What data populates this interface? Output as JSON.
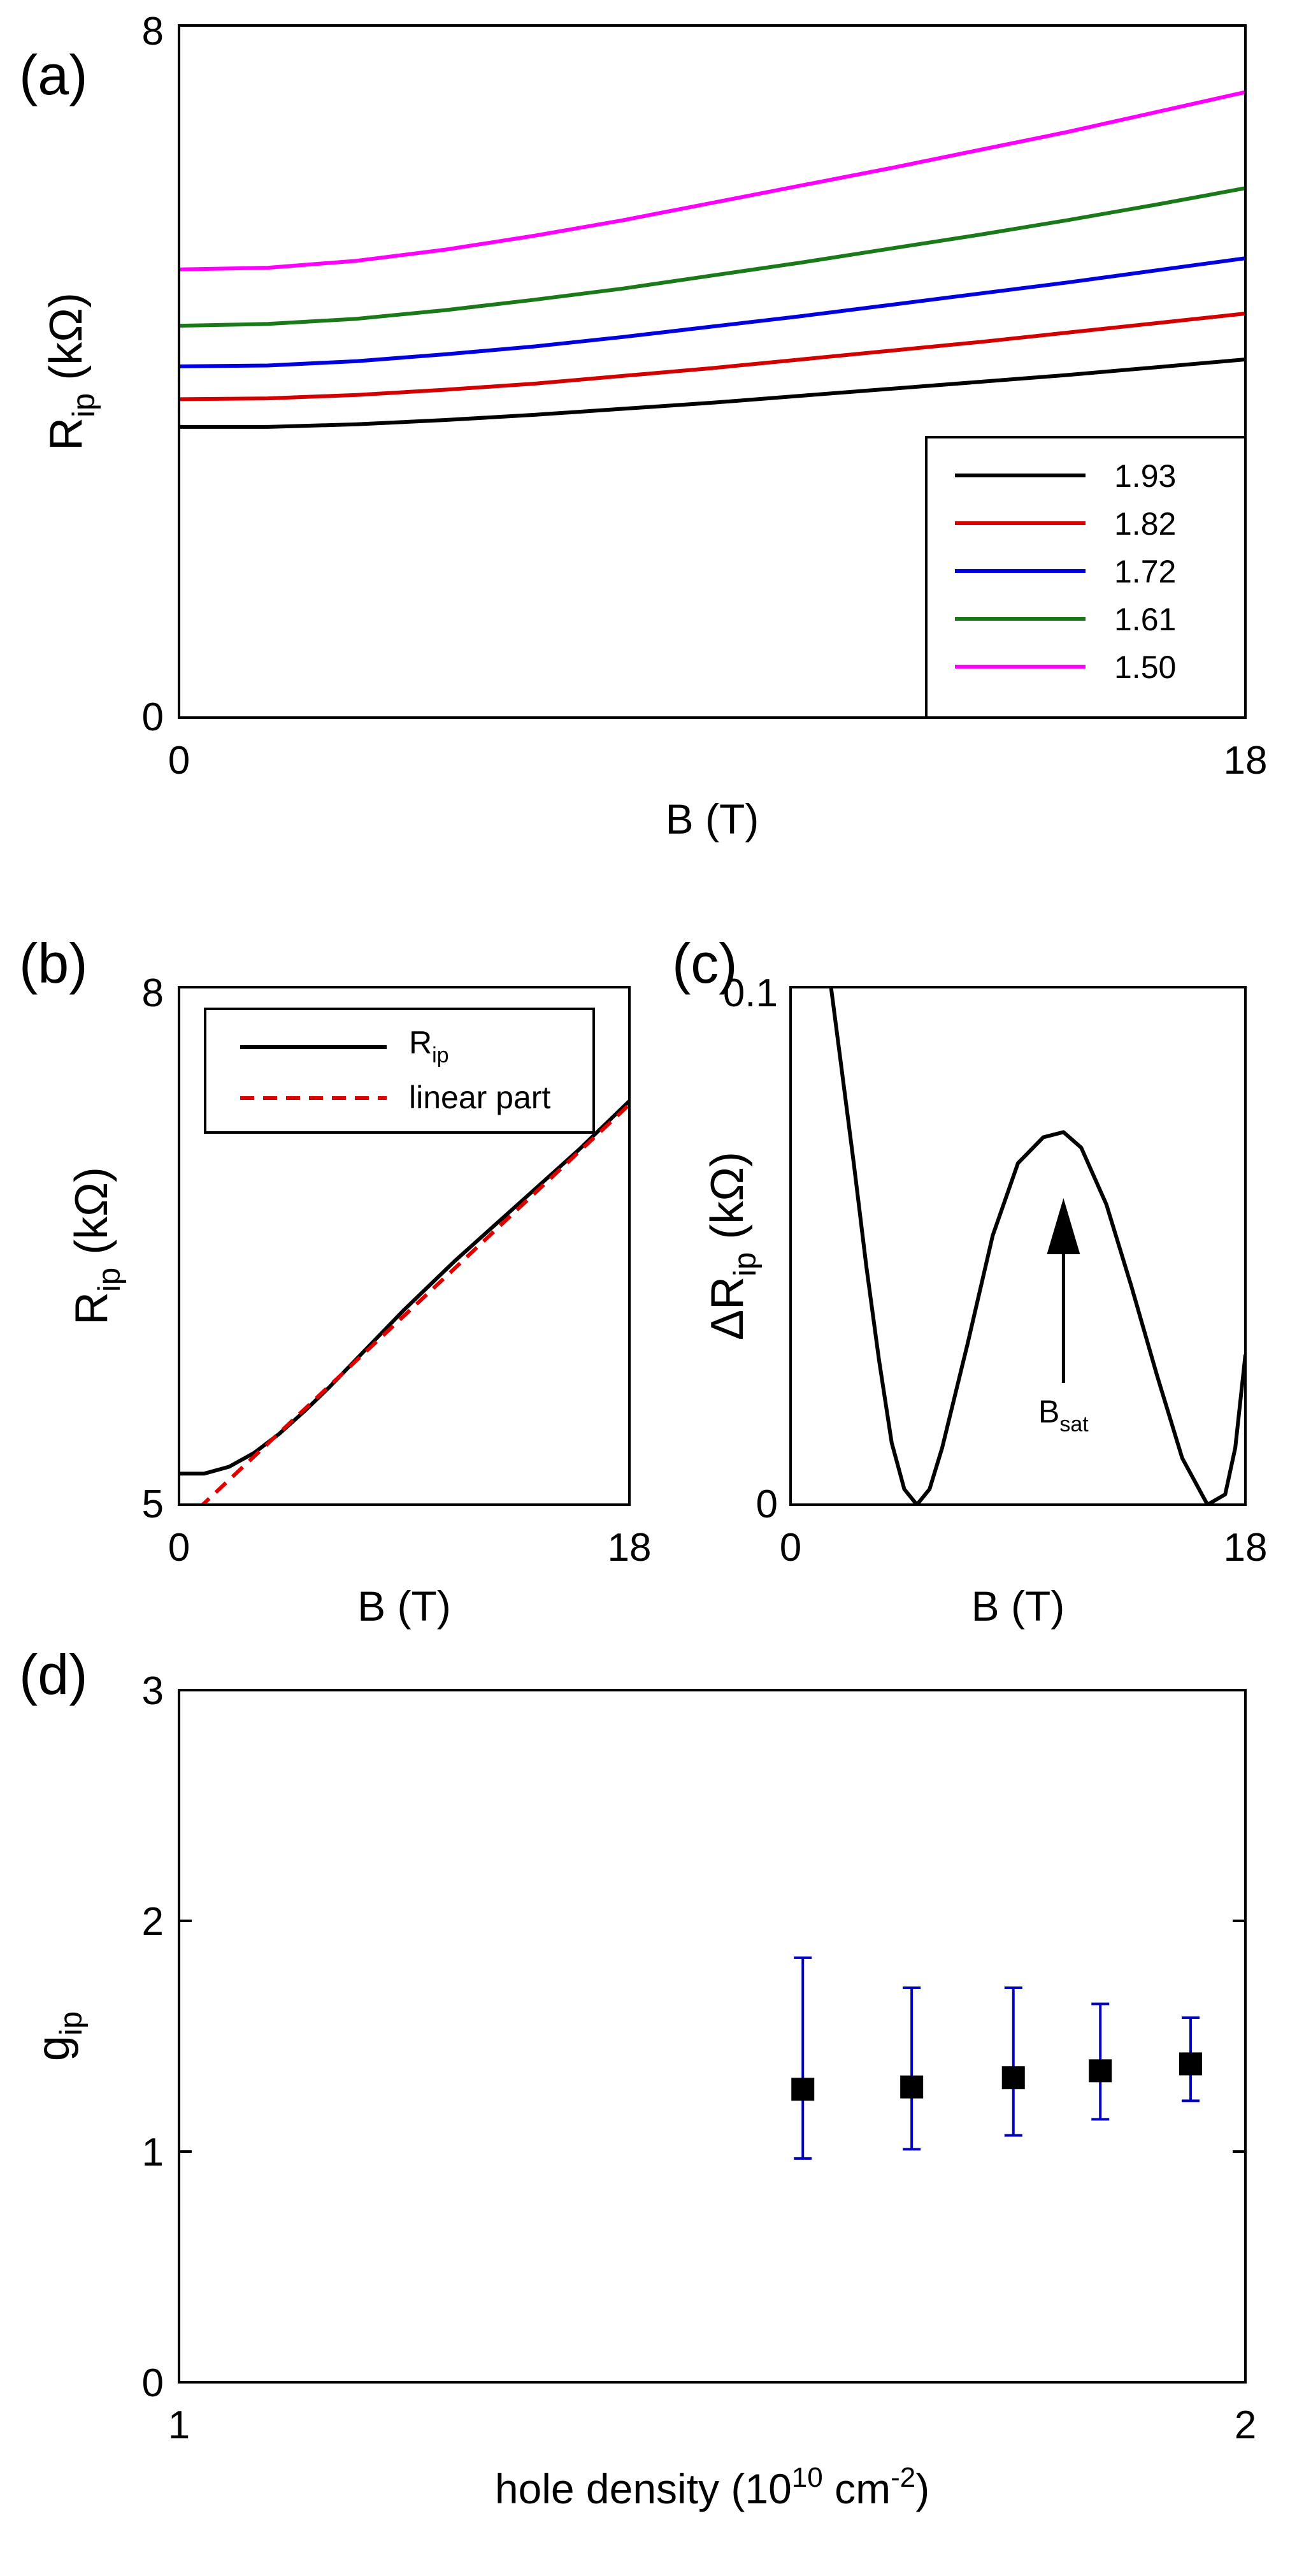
{
  "chart_data": [
    {
      "panel_label": "(a)",
      "type": "line",
      "xlabel": "B (T)",
      "ylabel": "R",
      "ylabel_sub": "ip",
      "ylabel_unit": "(kΩ)",
      "xlim": [
        0,
        18
      ],
      "ylim": [
        0,
        8
      ],
      "xticks": [
        "0",
        "18"
      ],
      "yticks": [
        "0",
        "8"
      ],
      "legend_position": "bottom-right",
      "series": [
        {
          "name": "1.93",
          "color": "#000000",
          "x": [
            0,
            1.5,
            3,
            4.5,
            6,
            7.5,
            9,
            10.5,
            12,
            13.5,
            15,
            16.5,
            18
          ],
          "y": [
            3.36,
            3.36,
            3.39,
            3.44,
            3.5,
            3.57,
            3.64,
            3.72,
            3.8,
            3.88,
            3.96,
            4.05,
            4.14
          ]
        },
        {
          "name": "1.82",
          "color": "#d40000",
          "x": [
            0,
            1.5,
            3,
            4.5,
            6,
            7.5,
            9,
            10.5,
            12,
            13.5,
            15,
            16.5,
            18
          ],
          "y": [
            3.68,
            3.69,
            3.73,
            3.79,
            3.86,
            3.95,
            4.04,
            4.14,
            4.24,
            4.34,
            4.45,
            4.56,
            4.67
          ]
        },
        {
          "name": "1.72",
          "color": "#0000e0",
          "x": [
            0,
            1.5,
            3,
            4.5,
            6,
            7.5,
            9,
            10.5,
            12,
            13.5,
            15,
            16.5,
            18
          ],
          "y": [
            4.06,
            4.07,
            4.12,
            4.2,
            4.29,
            4.4,
            4.52,
            4.64,
            4.77,
            4.9,
            5.03,
            5.17,
            5.31
          ]
        },
        {
          "name": "1.61",
          "color": "#1a7a1a",
          "x": [
            0,
            1.5,
            3,
            4.5,
            6,
            7.5,
            9,
            10.5,
            12,
            13.5,
            15,
            16.5,
            18
          ],
          "y": [
            4.53,
            4.55,
            4.61,
            4.71,
            4.83,
            4.96,
            5.11,
            5.26,
            5.42,
            5.58,
            5.75,
            5.93,
            6.12
          ]
        },
        {
          "name": "1.50",
          "color": "#ff00ff",
          "x": [
            0,
            1.5,
            3,
            4.5,
            6,
            7.5,
            9,
            10.5,
            12,
            13.5,
            15,
            16.5,
            18
          ],
          "y": [
            5.18,
            5.2,
            5.28,
            5.41,
            5.57,
            5.75,
            5.95,
            6.15,
            6.35,
            6.56,
            6.77,
            7.0,
            7.23
          ]
        }
      ]
    },
    {
      "panel_label": "(b)",
      "type": "line",
      "xlabel": "B (T)",
      "ylabel": "R",
      "ylabel_sub": "ip",
      "ylabel_unit": "(kΩ)",
      "xlim": [
        0,
        18
      ],
      "ylim": [
        5,
        8
      ],
      "xticks": [
        "0",
        "18"
      ],
      "yticks": [
        "5",
        "8"
      ],
      "legend_position": "top-left",
      "series": [
        {
          "name": "R",
          "name_sub": "ip",
          "color": "#000000",
          "dashed": false,
          "x": [
            0,
            1,
            2,
            3,
            4,
            5,
            6,
            7,
            8,
            9,
            10,
            11,
            12,
            13,
            14,
            15,
            16,
            17,
            18
          ],
          "y": [
            5.18,
            5.18,
            5.22,
            5.3,
            5.41,
            5.54,
            5.68,
            5.83,
            5.98,
            6.13,
            6.27,
            6.41,
            6.54,
            6.67,
            6.8,
            6.93,
            7.06,
            7.2,
            7.34
          ]
        },
        {
          "name": "linear part",
          "color": "#e00000",
          "dashed": true,
          "x": [
            0.8,
            18
          ],
          "y": [
            4.98,
            7.32
          ]
        }
      ]
    },
    {
      "panel_label": "(c)",
      "type": "line",
      "xlabel": "B (T)",
      "ylabel": "ΔR",
      "ylabel_sub": "ip",
      "ylabel_unit": "(kΩ)",
      "xlim": [
        0,
        18
      ],
      "ylim": [
        0,
        0.1
      ],
      "xticks": [
        "0",
        "18"
      ],
      "yticks": [
        "0",
        "0.1"
      ],
      "annotation": "B",
      "annotation_sub": "sat",
      "annotation_x": 10.8,
      "series": [
        {
          "color": "#000000",
          "x": [
            1.6,
            2.0,
            2.5,
            3.0,
            3.5,
            4.0,
            4.5,
            5.0,
            5.5,
            6.0,
            7.0,
            8.0,
            9.0,
            10.0,
            10.8,
            11.5,
            12.5,
            13.5,
            14.5,
            15.5,
            16.5,
            17.2,
            17.6,
            18.0
          ],
          "y": [
            0.1,
            0.085,
            0.066,
            0.046,
            0.028,
            0.012,
            0.003,
            0.0,
            0.003,
            0.011,
            0.031,
            0.052,
            0.066,
            0.071,
            0.072,
            0.069,
            0.058,
            0.042,
            0.025,
            0.009,
            0.0,
            0.002,
            0.011,
            0.029
          ]
        }
      ]
    },
    {
      "panel_label": "(d)",
      "type": "scatter",
      "xlabel": "hole density (10",
      "xlabel_exp1": "10",
      "xlabel_mid": " cm",
      "xlabel_exp2": "-2",
      "xlabel_end": ")",
      "ylabel": "g",
      "ylabel_sub": "ip",
      "xlim": [
        1,
        2
      ],
      "ylim": [
        0,
        3
      ],
      "xscale": "log",
      "xticks": [
        "1",
        "2"
      ],
      "yticks": [
        "0",
        "1",
        "2",
        "3"
      ],
      "errorbar_color": "#0000c0",
      "points": [
        {
          "x": 1.5,
          "y": 1.27,
          "ylo": 0.97,
          "yhi": 1.84
        },
        {
          "x": 1.61,
          "y": 1.28,
          "ylo": 1.01,
          "yhi": 1.71
        },
        {
          "x": 1.72,
          "y": 1.32,
          "ylo": 1.07,
          "yhi": 1.71
        },
        {
          "x": 1.82,
          "y": 1.35,
          "ylo": 1.14,
          "yhi": 1.64
        },
        {
          "x": 1.93,
          "y": 1.38,
          "ylo": 1.22,
          "yhi": 1.58
        }
      ]
    }
  ]
}
